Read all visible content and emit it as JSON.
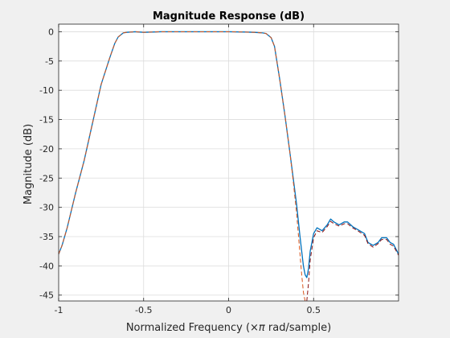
{
  "chart_data": {
    "type": "line",
    "title": "Magnitude Response (dB)",
    "xlabel_prefix": "Normalized Frequency  (",
    "xlabel_symbol": "×π",
    "xlabel_suffix": " rad/sample)",
    "ylabel": "Magnitude (dB)",
    "xlim": [
      -1,
      1
    ],
    "ylim": [
      -46,
      1.3
    ],
    "xticks": [
      -1,
      -0.5,
      0,
      0.5
    ],
    "xtick_labels": [
      "-1",
      "-0.5",
      "0",
      "0.5"
    ],
    "yticks": [
      0,
      -5,
      -10,
      -15,
      -20,
      -25,
      -30,
      -35,
      -40,
      -45
    ],
    "ytick_labels": [
      "0",
      "-5",
      "-10",
      "-15",
      "-20",
      "-25",
      "-30",
      "-35",
      "-40",
      "-45"
    ],
    "grid": true,
    "colors": {
      "series1": "#0072BD",
      "series2": "#D95319",
      "series3": "#8a1010"
    },
    "series": [
      {
        "style": "solid",
        "color": "#0072BD",
        "x": [
          -1.0,
          -0.98,
          -0.95,
          -0.9,
          -0.85,
          -0.8,
          -0.75,
          -0.7,
          -0.67,
          -0.65,
          -0.62,
          -0.6,
          -0.55,
          -0.5,
          -0.4,
          -0.3,
          -0.2,
          -0.1,
          0.0,
          0.1,
          0.15,
          0.2,
          0.22,
          0.25,
          0.27,
          0.3,
          0.33,
          0.36,
          0.38,
          0.4,
          0.42,
          0.43,
          0.44,
          0.45,
          0.46,
          0.47,
          0.48,
          0.5,
          0.52,
          0.55,
          0.58,
          0.6,
          0.62,
          0.65,
          0.68,
          0.7,
          0.73,
          0.76,
          0.8,
          0.82,
          0.85,
          0.88,
          0.9,
          0.93,
          0.95,
          0.97,
          1.0
        ],
        "y": [
          -38.0,
          -36.5,
          -33.5,
          -27.5,
          -22.0,
          -15.5,
          -9.0,
          -4.5,
          -2.0,
          -0.9,
          -0.2,
          -0.1,
          0.0,
          -0.1,
          0.0,
          0.0,
          0.0,
          0.0,
          0.0,
          -0.05,
          -0.1,
          -0.2,
          -0.3,
          -1.0,
          -2.5,
          -8.0,
          -14.0,
          -20.5,
          -25.0,
          -29.5,
          -35.0,
          -37.5,
          -40.0,
          -41.5,
          -42.0,
          -40.5,
          -37.5,
          -34.5,
          -33.5,
          -34.0,
          -33.0,
          -32.0,
          -32.5,
          -33.0,
          -32.5,
          -32.5,
          -33.3,
          -33.8,
          -34.5,
          -36.0,
          -36.5,
          -36.0,
          -35.2,
          -35.2,
          -36.0,
          -36.3,
          -38.0
        ]
      },
      {
        "style": "dashed",
        "color": "#D95319",
        "x": [
          -1.0,
          -0.98,
          -0.95,
          -0.9,
          -0.85,
          -0.8,
          -0.75,
          -0.7,
          -0.67,
          -0.65,
          -0.62,
          -0.6,
          -0.55,
          -0.5,
          -0.4,
          -0.3,
          -0.2,
          -0.1,
          0.0,
          0.1,
          0.15,
          0.2,
          0.22,
          0.25,
          0.27,
          0.3,
          0.33,
          0.36,
          0.38,
          0.4,
          0.42,
          0.43,
          0.44,
          0.45,
          0.46
        ],
        "y": [
          -38.0,
          -36.5,
          -33.5,
          -27.5,
          -22.0,
          -15.5,
          -9.0,
          -4.5,
          -2.0,
          -0.9,
          -0.2,
          -0.1,
          0.0,
          -0.1,
          0.0,
          0.0,
          0.0,
          0.0,
          0.0,
          -0.05,
          -0.1,
          -0.2,
          -0.3,
          -1.0,
          -2.5,
          -8.0,
          -14.0,
          -20.5,
          -25.5,
          -31.0,
          -38.0,
          -41.5,
          -44.5,
          -46.0,
          -46.0
        ]
      },
      {
        "style": "dashed",
        "color": "#8a1010",
        "x": [
          0.46,
          0.47,
          0.48,
          0.5,
          0.52,
          0.55,
          0.58,
          0.6,
          0.62,
          0.65,
          0.68,
          0.7,
          0.73,
          0.76,
          0.8,
          0.82,
          0.85,
          0.88,
          0.9,
          0.93,
          0.95,
          0.97,
          1.0
        ],
        "y": [
          -46.0,
          -43.0,
          -39.0,
          -35.2,
          -34.0,
          -34.3,
          -33.3,
          -32.4,
          -32.8,
          -33.2,
          -32.8,
          -32.8,
          -33.5,
          -34.0,
          -34.8,
          -36.2,
          -36.8,
          -36.2,
          -35.5,
          -35.5,
          -36.3,
          -36.6,
          -38.2
        ]
      }
    ]
  }
}
